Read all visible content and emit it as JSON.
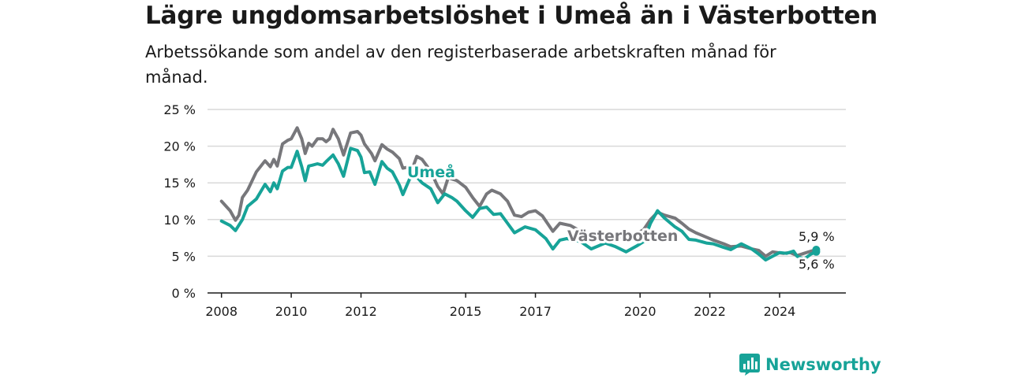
{
  "title": "Lägre ungdomsarbetslöshet i Umeå än i Västerbotten",
  "subtitle": "Arbetssökande som andel av den registerbaserade arbetskraften månad för månad.",
  "brand": "Newsworthy",
  "colors": {
    "umea": "#17a398",
    "vasterbotten": "#77777b",
    "grid": "#d9d9d9",
    "axis": "#1a1a1a"
  },
  "chart_data": {
    "type": "line",
    "title": "Lägre ungdomsarbetslöshet i Umeå än i Västerbotten",
    "xlabel": "",
    "ylabel": "",
    "ylim": [
      0,
      25
    ],
    "xlim": [
      2007.6,
      2025.9
    ],
    "y_ticks": [
      0,
      5,
      10,
      15,
      20,
      25
    ],
    "y_tick_labels": [
      "0 %",
      "5 %",
      "10 %",
      "15 %",
      "20 %",
      "25 %"
    ],
    "x_ticks": [
      2008,
      2010,
      2012,
      2015,
      2017,
      2020,
      2022,
      2024
    ],
    "x_tick_labels": [
      "2008",
      "2010",
      "2012",
      "2015",
      "2017",
      "2020",
      "2022",
      "2024"
    ],
    "grid": true,
    "legend": "inline labels",
    "series": [
      {
        "name": "Västerbotten",
        "label": "Västerbotten",
        "end_label": "5,9 %",
        "end_value": 5.9,
        "points": [
          [
            2008.0,
            12.5
          ],
          [
            2008.25,
            11.2
          ],
          [
            2008.4,
            9.9
          ],
          [
            2008.5,
            10.6
          ],
          [
            2008.6,
            13.0
          ],
          [
            2008.75,
            14.0
          ],
          [
            2009.0,
            16.5
          ],
          [
            2009.25,
            18.0
          ],
          [
            2009.4,
            17.2
          ],
          [
            2009.5,
            18.2
          ],
          [
            2009.6,
            17.3
          ],
          [
            2009.75,
            20.3
          ],
          [
            2009.9,
            20.8
          ],
          [
            2010.0,
            21.0
          ],
          [
            2010.17,
            22.5
          ],
          [
            2010.3,
            21.0
          ],
          [
            2010.4,
            19.0
          ],
          [
            2010.5,
            20.4
          ],
          [
            2010.6,
            20.0
          ],
          [
            2010.75,
            21.0
          ],
          [
            2010.9,
            21.0
          ],
          [
            2011.0,
            20.6
          ],
          [
            2011.1,
            21.0
          ],
          [
            2011.2,
            22.3
          ],
          [
            2011.35,
            21.0
          ],
          [
            2011.5,
            18.8
          ],
          [
            2011.7,
            21.8
          ],
          [
            2011.9,
            22.0
          ],
          [
            2012.0,
            21.5
          ],
          [
            2012.1,
            20.3
          ],
          [
            2012.3,
            19.0
          ],
          [
            2012.4,
            18.0
          ],
          [
            2012.6,
            20.2
          ],
          [
            2012.75,
            19.6
          ],
          [
            2012.9,
            19.2
          ],
          [
            2013.1,
            18.3
          ],
          [
            2013.2,
            17.0
          ],
          [
            2013.5,
            17.3
          ],
          [
            2013.6,
            18.6
          ],
          [
            2013.75,
            18.2
          ],
          [
            2014.0,
            16.6
          ],
          [
            2014.2,
            14.5
          ],
          [
            2014.35,
            13.5
          ],
          [
            2014.5,
            15.7
          ],
          [
            2014.75,
            15.3
          ],
          [
            2015.0,
            14.4
          ],
          [
            2015.2,
            13.0
          ],
          [
            2015.4,
            11.8
          ],
          [
            2015.6,
            13.5
          ],
          [
            2015.75,
            14.0
          ],
          [
            2016.0,
            13.5
          ],
          [
            2016.2,
            12.5
          ],
          [
            2016.4,
            10.6
          ],
          [
            2016.6,
            10.4
          ],
          [
            2016.8,
            11.0
          ],
          [
            2017.0,
            11.2
          ],
          [
            2017.2,
            10.5
          ],
          [
            2017.5,
            8.4
          ],
          [
            2017.7,
            9.5
          ],
          [
            2018.0,
            9.2
          ],
          [
            2018.3,
            8.4
          ],
          [
            2018.6,
            8.0
          ],
          [
            2019.0,
            8.0
          ],
          [
            2019.4,
            7.6
          ],
          [
            2019.8,
            7.8
          ],
          [
            2020.1,
            8.6
          ],
          [
            2020.3,
            10.0
          ],
          [
            2020.5,
            11.0
          ],
          [
            2020.7,
            10.6
          ],
          [
            2021.0,
            10.2
          ],
          [
            2021.2,
            9.5
          ],
          [
            2021.4,
            8.7
          ],
          [
            2021.6,
            8.2
          ],
          [
            2021.9,
            7.6
          ],
          [
            2022.1,
            7.2
          ],
          [
            2022.4,
            6.7
          ],
          [
            2022.6,
            6.3
          ],
          [
            2022.9,
            6.4
          ],
          [
            2023.2,
            6.0
          ],
          [
            2023.4,
            5.8
          ],
          [
            2023.6,
            5.0
          ],
          [
            2023.8,
            5.6
          ],
          [
            2024.1,
            5.4
          ],
          [
            2024.3,
            5.5
          ],
          [
            2024.5,
            5.1
          ],
          [
            2024.7,
            5.4
          ],
          [
            2024.9,
            5.7
          ],
          [
            2025.05,
            5.9
          ]
        ]
      },
      {
        "name": "Umeå",
        "label": "Umeå",
        "end_label": "5,6 %",
        "end_value": 5.6,
        "points": [
          [
            2008.0,
            9.8
          ],
          [
            2008.25,
            9.2
          ],
          [
            2008.4,
            8.5
          ],
          [
            2008.6,
            10.0
          ],
          [
            2008.75,
            11.8
          ],
          [
            2009.0,
            12.8
          ],
          [
            2009.25,
            14.8
          ],
          [
            2009.4,
            13.8
          ],
          [
            2009.5,
            15.0
          ],
          [
            2009.6,
            14.2
          ],
          [
            2009.75,
            16.6
          ],
          [
            2009.9,
            17.1
          ],
          [
            2010.0,
            17.1
          ],
          [
            2010.17,
            19.3
          ],
          [
            2010.3,
            17.2
          ],
          [
            2010.4,
            15.3
          ],
          [
            2010.5,
            17.3
          ],
          [
            2010.6,
            17.4
          ],
          [
            2010.75,
            17.6
          ],
          [
            2010.9,
            17.4
          ],
          [
            2011.0,
            17.9
          ],
          [
            2011.2,
            18.8
          ],
          [
            2011.35,
            17.6
          ],
          [
            2011.5,
            15.9
          ],
          [
            2011.7,
            19.7
          ],
          [
            2011.9,
            19.4
          ],
          [
            2012.0,
            18.5
          ],
          [
            2012.1,
            16.4
          ],
          [
            2012.25,
            16.5
          ],
          [
            2012.4,
            14.8
          ],
          [
            2012.6,
            17.9
          ],
          [
            2012.75,
            17.0
          ],
          [
            2012.9,
            16.5
          ],
          [
            2013.1,
            14.7
          ],
          [
            2013.2,
            13.4
          ],
          [
            2013.4,
            15.6
          ],
          [
            2013.6,
            15.8
          ],
          [
            2013.75,
            15.0
          ],
          [
            2014.0,
            14.2
          ],
          [
            2014.2,
            12.3
          ],
          [
            2014.4,
            13.5
          ],
          [
            2014.6,
            13.0
          ],
          [
            2014.75,
            12.5
          ],
          [
            2015.0,
            11.2
          ],
          [
            2015.2,
            10.3
          ],
          [
            2015.4,
            11.5
          ],
          [
            2015.6,
            11.7
          ],
          [
            2015.8,
            10.7
          ],
          [
            2016.0,
            10.8
          ],
          [
            2016.2,
            9.5
          ],
          [
            2016.4,
            8.2
          ],
          [
            2016.7,
            9.0
          ],
          [
            2017.0,
            8.6
          ],
          [
            2017.3,
            7.4
          ],
          [
            2017.5,
            6.0
          ],
          [
            2017.7,
            7.2
          ],
          [
            2017.9,
            7.4
          ],
          [
            2018.3,
            7.0
          ],
          [
            2018.6,
            6.0
          ],
          [
            2019.0,
            6.8
          ],
          [
            2019.3,
            6.3
          ],
          [
            2019.6,
            5.6
          ],
          [
            2019.9,
            6.4
          ],
          [
            2020.1,
            7.0
          ],
          [
            2020.3,
            9.5
          ],
          [
            2020.5,
            11.2
          ],
          [
            2020.7,
            10.2
          ],
          [
            2021.0,
            9.0
          ],
          [
            2021.2,
            8.4
          ],
          [
            2021.4,
            7.3
          ],
          [
            2021.6,
            7.2
          ],
          [
            2021.9,
            6.8
          ],
          [
            2022.1,
            6.7
          ],
          [
            2022.4,
            6.2
          ],
          [
            2022.6,
            5.9
          ],
          [
            2022.9,
            6.7
          ],
          [
            2023.2,
            6.0
          ],
          [
            2023.4,
            5.3
          ],
          [
            2023.6,
            4.5
          ],
          [
            2023.8,
            5.0
          ],
          [
            2024.0,
            5.5
          ],
          [
            2024.2,
            5.4
          ],
          [
            2024.4,
            5.7
          ],
          [
            2024.5,
            5.0
          ],
          [
            2024.7,
            4.6
          ],
          [
            2024.9,
            5.3
          ],
          [
            2025.05,
            5.6
          ]
        ]
      }
    ]
  }
}
